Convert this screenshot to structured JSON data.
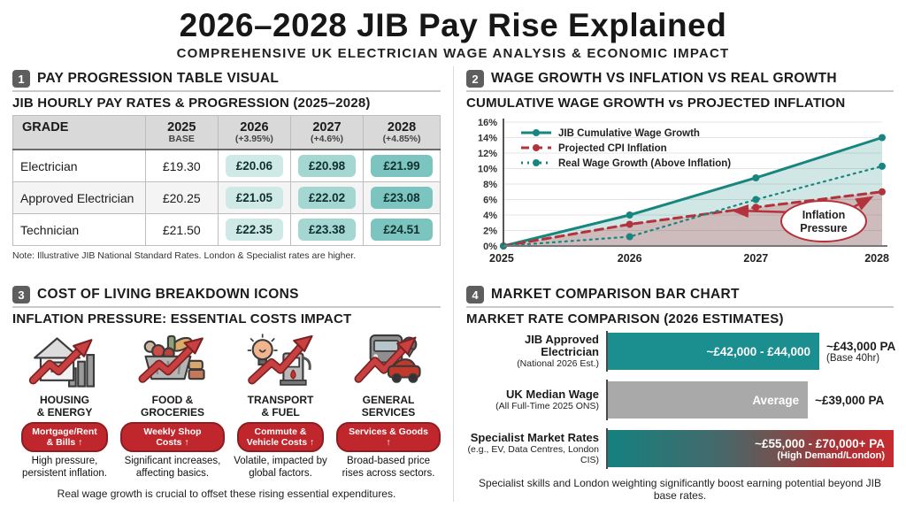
{
  "header": {
    "title": "2026–2028 JIB Pay Rise Explained",
    "subtitle": "COMPREHENSIVE UK ELECTRICIAN WAGE ANALYSIS & ECONOMIC IMPACT"
  },
  "sections": {
    "s1": {
      "num": "1",
      "title": "PAY PROGRESSION TABLE VISUAL",
      "subtitle": "JIB HOURLY PAY RATES & PROGRESSION (2025–2028)",
      "table": {
        "headers": [
          {
            "main": "GRADE",
            "sub": ""
          },
          {
            "main": "2025",
            "sub": "BASE"
          },
          {
            "main": "2026",
            "sub": "(+3.95%)"
          },
          {
            "main": "2027",
            "sub": "(+4.6%)"
          },
          {
            "main": "2028",
            "sub": "(+4.85%)"
          }
        ],
        "rows": [
          {
            "grade": "Electrician",
            "base": "£19.30",
            "y2026": "£20.06",
            "y2027": "£20.98",
            "y2028": "£21.99"
          },
          {
            "grade": "Approved Electrician",
            "base": "£20.25",
            "y2026": "£21.05",
            "y2027": "£22.02",
            "y2028": "£23.08"
          },
          {
            "grade": "Technician",
            "base": "£21.50",
            "y2026": "£22.35",
            "y2027": "£23.38",
            "y2028": "£24.51"
          }
        ],
        "note": "Note: Illustrative JIB National Standard Rates. London & Specialist rates are higher."
      }
    },
    "s2": {
      "num": "2",
      "title": "WAGE GROWTH VS INFLATION VS REAL GROWTH",
      "subtitle": "CUMULATIVE WAGE GROWTH vs PROJECTED INFLATION"
    },
    "s3": {
      "num": "3",
      "title": "COST OF LIVING BREAKDOWN ICONS",
      "subtitle": "INFLATION PRESSURE: ESSENTIAL COSTS IMPACT",
      "items": [
        {
          "name1": "HOUSING",
          "name2": "& ENERGY",
          "badge1": "Mortgage/Rent",
          "badge2": "& Bills ↑",
          "desc": "High pressure, persistent inflation."
        },
        {
          "name1": "FOOD &",
          "name2": "GROCERIES",
          "badge1": "Weekly Shop Costs ↑",
          "badge2": "",
          "desc": "Significant increases, affecting basics."
        },
        {
          "name1": "TRANSPORT",
          "name2": "& FUEL",
          "badge1": "Commute &",
          "badge2": "Vehicle Costs ↑",
          "desc": "Volatile, impacted by global factors."
        },
        {
          "name1": "GENERAL",
          "name2": "SERVICES",
          "badge1": "Services & Goods ↑",
          "badge2": "",
          "desc": "Broad-based price rises across sectors."
        }
      ],
      "footer": "Real wage growth is crucial to offset these rising essential expenditures."
    },
    "s4": {
      "num": "4",
      "title": "MARKET COMPARISON BAR CHART",
      "subtitle": "MARKET RATE COMPARISON (2026 ESTIMATES)",
      "bars": [
        {
          "label": "JIB Approved Electrician",
          "sublabel": "(National 2026 Est.)",
          "bar_text": "~£42,000 - £44,000",
          "right1": "~£43,000 PA",
          "right2": "(Base 40hr)"
        },
        {
          "label": "UK Median Wage",
          "sublabel": "(All Full-Time 2025 ONS)",
          "bar_text": "Average",
          "right1": "~£39,000 PA",
          "right2": ""
        },
        {
          "label": "Specialist Market Rates",
          "sublabel": "(e.g., EV, Data Centres, London CIS)",
          "bar_text": "~£55,000 - £70,000+ PA",
          "bar_text2": "(High Demand/London)"
        }
      ],
      "footer": "Specialist skills and London weighting significantly boost earning potential beyond JIB base rates."
    }
  },
  "chart_data": [
    {
      "type": "line",
      "title": "CUMULATIVE WAGE GROWTH vs PROJECTED INFLATION",
      "x": [
        "2025",
        "2026",
        "2027",
        "2028"
      ],
      "series": [
        {
          "name": "JIB Cumulative Wage Growth",
          "values": [
            0,
            4,
            8.8,
            14
          ],
          "color": "#17867f",
          "style": "solid"
        },
        {
          "name": "Projected CPI Inflation",
          "values": [
            0,
            2.8,
            5,
            7
          ],
          "color": "#b3333c",
          "style": "dashed"
        },
        {
          "name": "Real Wage Growth (Above Inflation)",
          "values": [
            0,
            1.2,
            6,
            10.3
          ],
          "color": "#17867f",
          "style": "dotted"
        }
      ],
      "ylim": [
        0,
        16
      ],
      "ytick_step": 2,
      "ytick_suffix": "%",
      "grid": true,
      "legend_position": "top-left",
      "annotation": "Inflation Pressure"
    },
    {
      "type": "bar",
      "orientation": "horizontal",
      "title": "MARKET RATE COMPARISON (2026 ESTIMATES)",
      "categories": [
        "JIB Approved Electrician (National 2026 Est.)",
        "UK Median Wage (All Full-Time 2025 ONS)",
        "Specialist Market Rates (e.g., EV, Data Centres, London CIS)"
      ],
      "values": [
        43000,
        39000,
        70000
      ],
      "value_labels": [
        "~£42,000 - £44,000 | ~£43,000 PA (Base 40hr)",
        "Average | ~£39,000 PA",
        "~£55,000 - £70,000+ PA (High Demand/London)"
      ],
      "width_pct": [
        74,
        70,
        100
      ],
      "bar_colors": [
        "#1b8f8f",
        "#a9a9a9",
        "teal-to-red-gradient"
      ]
    }
  ],
  "colors": {
    "teal": "#17867f",
    "red_line": "#b3333c",
    "pill_red": "#c0272d",
    "bar_teal": "#1b8f8f",
    "bar_gray": "#a9a9a9",
    "table_header": "#d9d9d9"
  }
}
